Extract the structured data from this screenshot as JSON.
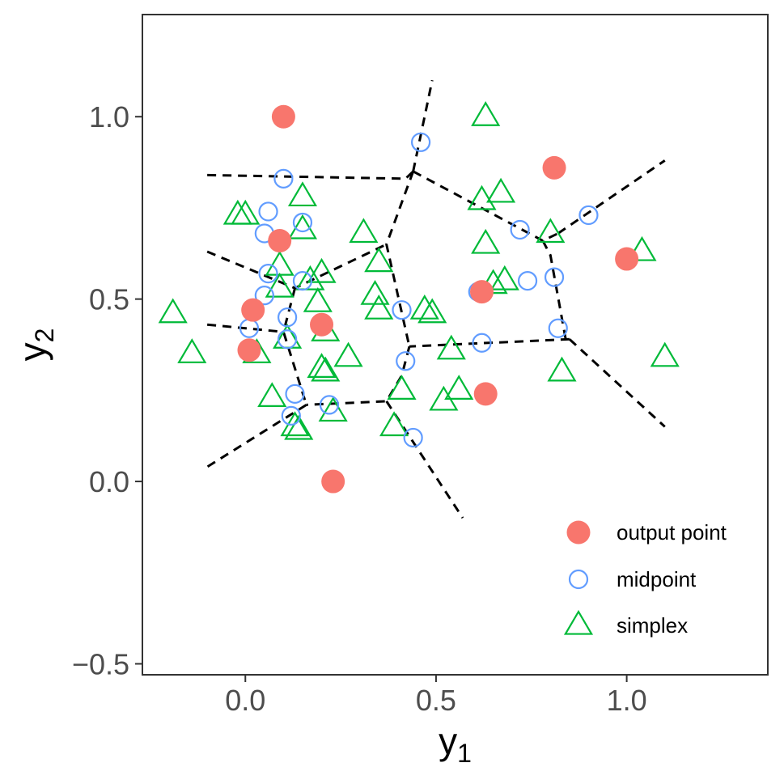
{
  "chart_data": {
    "type": "scatter",
    "xlabel": "y",
    "xlabel_sub": "1",
    "ylabel": "y",
    "ylabel_sub": "2",
    "xlim": [
      -0.27,
      1.37
    ],
    "ylim": [
      -0.53,
      1.28
    ],
    "x_ticks": [
      0.0,
      0.5,
      1.0
    ],
    "x_tick_labels": [
      "0.0",
      "0.5",
      "1.0"
    ],
    "y_ticks": [
      -0.5,
      0.0,
      0.5,
      1.0
    ],
    "y_tick_labels": [
      "−0.5",
      "0.0",
      "0.5",
      "1.0"
    ],
    "grid": false,
    "legend_position": "bottom-right",
    "legend": [
      {
        "key": "output",
        "label": "output point",
        "marker": "filled-circle"
      },
      {
        "key": "midpoint",
        "label": "midpoint",
        "marker": "open-circle"
      },
      {
        "key": "simplex",
        "label": "simplex",
        "marker": "open-triangle"
      }
    ],
    "colors": {
      "output": "#f8766d",
      "midpoint": "#619cff",
      "simplex": "#00ba38",
      "boundary": "#000000",
      "panel_border": "#333333"
    },
    "series": [
      {
        "key": "output",
        "points": [
          [
            0.1,
            1.0
          ],
          [
            0.81,
            0.86
          ],
          [
            1.0,
            0.61
          ],
          [
            0.09,
            0.66
          ],
          [
            0.62,
            0.52
          ],
          [
            0.02,
            0.47
          ],
          [
            0.2,
            0.43
          ],
          [
            0.01,
            0.36
          ],
          [
            0.63,
            0.24
          ],
          [
            0.23,
            0.0
          ]
        ]
      },
      {
        "key": "midpoint",
        "points": [
          [
            0.46,
            0.93
          ],
          [
            0.1,
            0.83
          ],
          [
            0.9,
            0.73
          ],
          [
            0.06,
            0.74
          ],
          [
            0.15,
            0.71
          ],
          [
            0.05,
            0.68
          ],
          [
            0.72,
            0.69
          ],
          [
            0.06,
            0.57
          ],
          [
            0.15,
            0.55
          ],
          [
            0.74,
            0.55
          ],
          [
            0.81,
            0.56
          ],
          [
            0.05,
            0.51
          ],
          [
            0.61,
            0.52
          ],
          [
            0.41,
            0.47
          ],
          [
            0.11,
            0.45
          ],
          [
            0.01,
            0.42
          ],
          [
            0.11,
            0.39
          ],
          [
            0.62,
            0.38
          ],
          [
            0.82,
            0.42
          ],
          [
            0.42,
            0.33
          ],
          [
            0.13,
            0.24
          ],
          [
            0.22,
            0.21
          ],
          [
            0.12,
            0.18
          ],
          [
            0.44,
            0.12
          ]
        ]
      },
      {
        "key": "simplex",
        "points": [
          [
            0.63,
            1.0
          ],
          [
            0.15,
            0.78
          ],
          [
            0.62,
            0.77
          ],
          [
            0.67,
            0.79
          ],
          [
            -0.02,
            0.73
          ],
          [
            0.0,
            0.73
          ],
          [
            0.15,
            0.69
          ],
          [
            0.31,
            0.68
          ],
          [
            0.8,
            0.68
          ],
          [
            0.63,
            0.65
          ],
          [
            1.04,
            0.63
          ],
          [
            0.35,
            0.6
          ],
          [
            0.09,
            0.59
          ],
          [
            0.2,
            0.57
          ],
          [
            0.17,
            0.55
          ],
          [
            0.68,
            0.55
          ],
          [
            0.65,
            0.54
          ],
          [
            0.09,
            0.53
          ],
          [
            0.34,
            0.51
          ],
          [
            0.19,
            0.49
          ],
          [
            0.35,
            0.47
          ],
          [
            0.47,
            0.47
          ],
          [
            0.49,
            0.46
          ],
          [
            -0.19,
            0.46
          ],
          [
            0.21,
            0.41
          ],
          [
            0.11,
            0.39
          ],
          [
            -0.14,
            0.35
          ],
          [
            0.03,
            0.35
          ],
          [
            0.54,
            0.36
          ],
          [
            0.27,
            0.34
          ],
          [
            1.1,
            0.34
          ],
          [
            0.2,
            0.31
          ],
          [
            0.21,
            0.3
          ],
          [
            0.83,
            0.3
          ],
          [
            0.41,
            0.25
          ],
          [
            0.52,
            0.22
          ],
          [
            0.56,
            0.25
          ],
          [
            0.07,
            0.23
          ],
          [
            0.23,
            0.19
          ],
          [
            0.39,
            0.15
          ],
          [
            0.13,
            0.15
          ],
          [
            0.14,
            0.14
          ]
        ]
      }
    ],
    "boundaries": [
      [
        [
          -0.1,
          0.84
        ],
        [
          0.42,
          0.83
        ],
        [
          0.44,
          0.85
        ]
      ],
      [
        [
          0.44,
          0.85
        ],
        [
          0.49,
          1.1
        ]
      ],
      [
        [
          0.44,
          0.85
        ],
        [
          0.78,
          0.66
        ],
        [
          0.82,
          0.68
        ]
      ],
      [
        [
          0.82,
          0.68
        ],
        [
          1.1,
          0.88
        ]
      ],
      [
        [
          0.78,
          0.66
        ],
        [
          0.8,
          0.62
        ],
        [
          0.84,
          0.39
        ],
        [
          0.85,
          0.39
        ]
      ],
      [
        [
          0.85,
          0.39
        ],
        [
          1.1,
          0.15
        ]
      ],
      [
        [
          0.85,
          0.39
        ],
        [
          0.43,
          0.37
        ]
      ],
      [
        [
          0.44,
          0.85
        ],
        [
          0.37,
          0.65
        ],
        [
          0.43,
          0.37
        ]
      ],
      [
        [
          -0.1,
          0.63
        ],
        [
          0.13,
          0.53
        ],
        [
          0.37,
          0.65
        ]
      ],
      [
        [
          0.13,
          0.53
        ],
        [
          0.1,
          0.41
        ],
        [
          0.16,
          0.21
        ]
      ],
      [
        [
          -0.1,
          0.43
        ],
        [
          0.1,
          0.41
        ]
      ],
      [
        [
          0.43,
          0.37
        ],
        [
          0.41,
          0.29
        ],
        [
          0.37,
          0.22
        ],
        [
          0.16,
          0.21
        ]
      ],
      [
        [
          0.16,
          0.21
        ],
        [
          -0.1,
          0.04
        ]
      ],
      [
        [
          0.37,
          0.22
        ],
        [
          0.57,
          -0.1
        ]
      ]
    ]
  }
}
